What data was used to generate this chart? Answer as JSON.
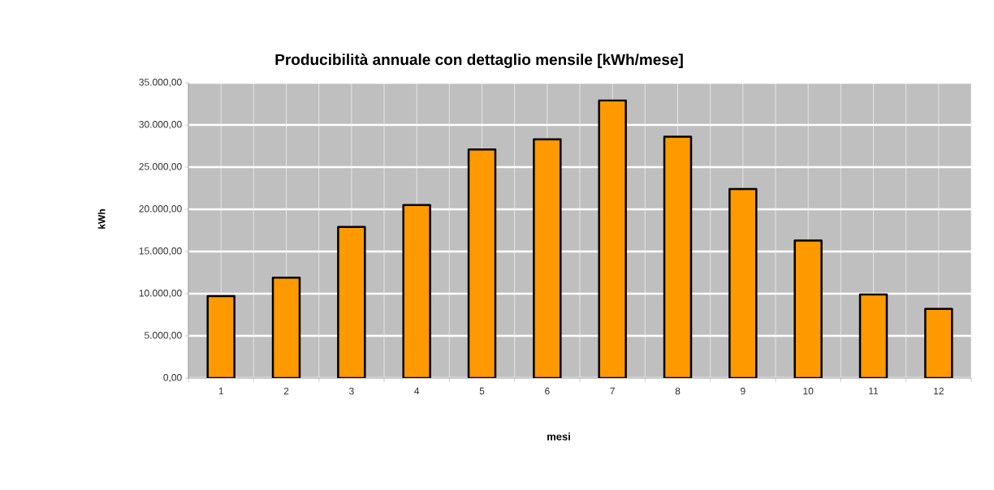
{
  "chart_data": {
    "type": "bar",
    "title": "Producibilità annuale con dettaglio mensile [kWh/mese]",
    "xlabel": "mesi",
    "ylabel": "kWh",
    "categories": [
      "1",
      "2",
      "3",
      "4",
      "5",
      "6",
      "7",
      "8",
      "9",
      "10",
      "11",
      "12"
    ],
    "values": [
      9700,
      11900,
      17900,
      20500,
      27100,
      28300,
      32900,
      28600,
      22400,
      16300,
      9900,
      8200
    ],
    "color": "#ff9900",
    "ylim": [
      0,
      35000
    ],
    "yticks": [
      {
        "value": 0,
        "label": "0,00"
      },
      {
        "value": 5000,
        "label": "5.000,00"
      },
      {
        "value": 10000,
        "label": "10.000,00"
      },
      {
        "value": 15000,
        "label": "15.000,00"
      },
      {
        "value": 20000,
        "label": "20.000,00"
      },
      {
        "value": 25000,
        "label": "25.000,00"
      },
      {
        "value": 30000,
        "label": "30.000,00"
      },
      {
        "value": 35000,
        "label": "35.000,00"
      }
    ],
    "grid": true
  }
}
